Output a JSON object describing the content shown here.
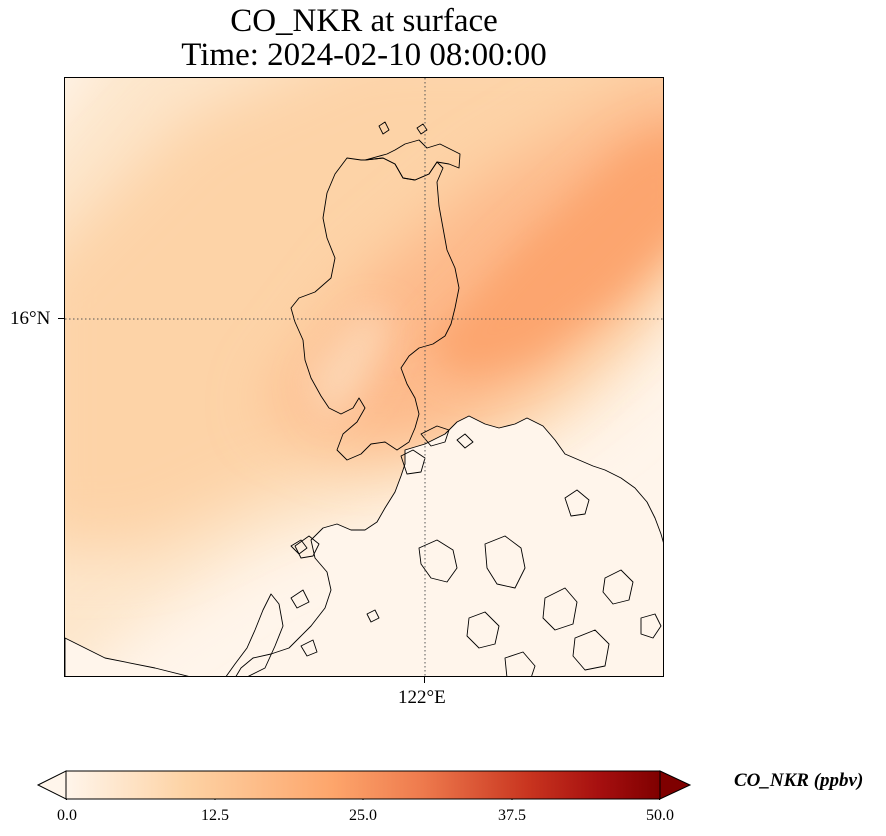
{
  "title": {
    "line1": "CO_NKR at surface",
    "line2": "Time: 2024-02-10 08:00:00"
  },
  "map": {
    "variable": "CO_NKR",
    "level": "surface",
    "time": "2024-02-10 08:00:00",
    "gridlines": {
      "latitude": {
        "value": 16,
        "label": "16°N",
        "style": "dotted"
      },
      "longitude": {
        "value": 122,
        "label": "122°E",
        "style": "dotted"
      }
    },
    "region": "Luzon, Philippines",
    "plume": {
      "direction": "southwest-to-northeast",
      "max_value_estimate": 24,
      "max_location": "northeast of Luzon",
      "background_value_estimate": 1
    }
  },
  "colorbar": {
    "label": "CO_NKR (ppbv)",
    "colormap": "Oranges-to-dark-red",
    "min": 0.0,
    "max": 50.0,
    "extend": "both",
    "ticks": [
      "0.0",
      "12.5",
      "25.0",
      "37.5",
      "50.0"
    ],
    "tick_values": [
      0.0,
      12.5,
      25.0,
      37.5,
      50.0
    ],
    "colors": [
      "#fff5eb",
      "#fdd3a5",
      "#fda56b",
      "#e0603a",
      "#b21b1b",
      "#7f0000"
    ]
  }
}
